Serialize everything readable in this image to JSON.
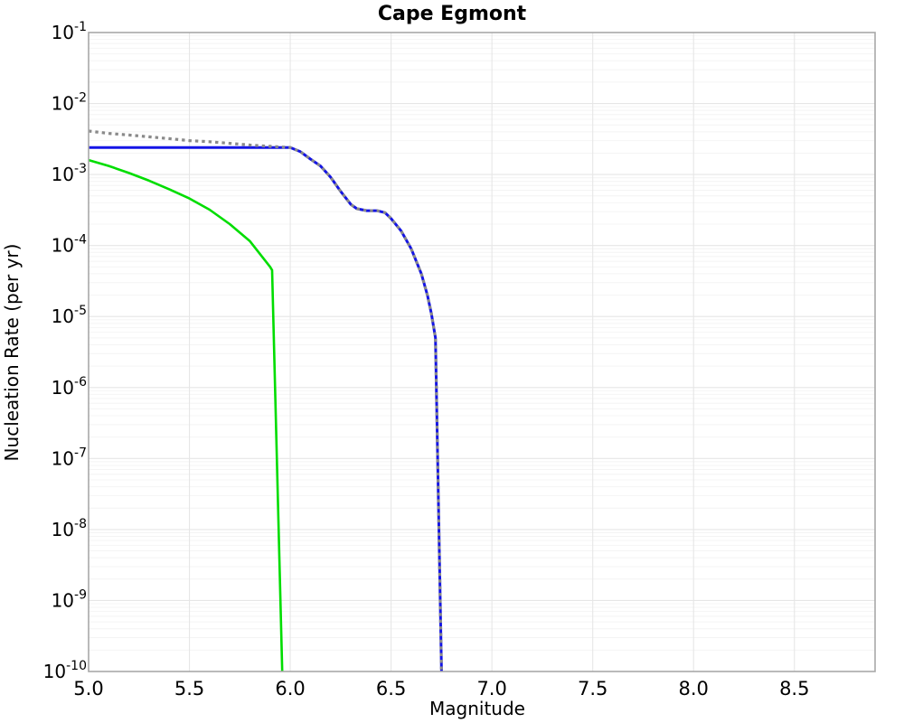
{
  "page": {
    "background": "#ffffff"
  },
  "chart_data": {
    "type": "line",
    "title": "Cape Egmont",
    "xlabel": "Magnitude",
    "ylabel": "Nucleation Rate (per yr)",
    "xlim": [
      5.0,
      8.9
    ],
    "ylim": [
      1e-10,
      0.1
    ],
    "ylim_exponents": [
      -10,
      -1
    ],
    "x_tick_labels": [
      "5.0",
      "5.5",
      "6.0",
      "6.5",
      "7.0",
      "7.5",
      "8.0",
      "8.5"
    ],
    "y_tick_exponents": [
      -1,
      -2,
      -3,
      -4,
      -5,
      -6,
      -7,
      -8,
      -9,
      -10
    ],
    "grid": "major-and-minor, light gray",
    "legend": "none",
    "colors": {
      "green_line": "#00dd00",
      "blue_line": "#1414e6",
      "gray_dotted": "#8a8a8a",
      "frame": "#a8a8a8",
      "grid_major": "#e6e6e6",
      "grid_minor": "#f4f4f4"
    },
    "series": [
      {
        "name": "green-solid-rate-curve",
        "color": "#00dd00",
        "style": "solid",
        "width": 2.6,
        "points": [
          [
            5.0,
            0.0016
          ],
          [
            5.1,
            0.00132
          ],
          [
            5.2,
            0.00105
          ],
          [
            5.3,
            0.00082
          ],
          [
            5.4,
            0.00062
          ],
          [
            5.5,
            0.00046
          ],
          [
            5.6,
            0.00032
          ],
          [
            5.7,
            0.0002
          ],
          [
            5.8,
            0.000115
          ],
          [
            5.9,
            5e-05
          ],
          [
            5.91,
            4.5e-05
          ],
          [
            5.96,
            1e-10
          ]
        ]
      },
      {
        "name": "blue-solid-rate-curve",
        "color": "#1414e6",
        "style": "solid",
        "width": 3,
        "points": [
          [
            5.0,
            0.0024
          ],
          [
            5.5,
            0.0024
          ],
          [
            6.0,
            0.0024
          ],
          [
            6.05,
            0.0021
          ],
          [
            6.1,
            0.00165
          ],
          [
            6.15,
            0.00132
          ],
          [
            6.2,
            0.00092
          ],
          [
            6.25,
            0.00058
          ],
          [
            6.3,
            0.00038
          ],
          [
            6.33,
            0.00033
          ],
          [
            6.38,
            0.00031
          ],
          [
            6.43,
            0.00031
          ],
          [
            6.47,
            0.00029
          ],
          [
            6.5,
            0.00024
          ],
          [
            6.55,
            0.00016
          ],
          [
            6.6,
            9e-05
          ],
          [
            6.65,
            4e-05
          ],
          [
            6.68,
            2e-05
          ],
          [
            6.7,
            1.1e-05
          ],
          [
            6.72,
            5e-06
          ],
          [
            6.75,
            1e-10
          ]
        ]
      },
      {
        "name": "gray-dotted-rate-curve",
        "color": "#8a8a8a",
        "style": "dotted",
        "width": 3.2,
        "points": [
          [
            5.0,
            0.0041
          ],
          [
            5.1,
            0.0038
          ],
          [
            5.2,
            0.0036
          ],
          [
            5.3,
            0.0034
          ],
          [
            5.4,
            0.0032
          ],
          [
            5.5,
            0.003
          ],
          [
            5.6,
            0.0029
          ],
          [
            5.7,
            0.00275
          ],
          [
            5.8,
            0.0026
          ],
          [
            5.9,
            0.0025
          ],
          [
            6.0,
            0.0024
          ],
          [
            6.05,
            0.0021
          ],
          [
            6.1,
            0.00165
          ],
          [
            6.15,
            0.00132
          ],
          [
            6.2,
            0.00092
          ],
          [
            6.25,
            0.00058
          ],
          [
            6.3,
            0.00038
          ],
          [
            6.33,
            0.00033
          ],
          [
            6.38,
            0.00031
          ],
          [
            6.43,
            0.00031
          ],
          [
            6.47,
            0.00029
          ],
          [
            6.5,
            0.00024
          ],
          [
            6.55,
            0.00016
          ],
          [
            6.6,
            9e-05
          ],
          [
            6.65,
            4e-05
          ],
          [
            6.68,
            2e-05
          ],
          [
            6.7,
            1.1e-05
          ],
          [
            6.72,
            5e-06
          ],
          [
            6.75,
            1e-10
          ]
        ]
      }
    ]
  }
}
